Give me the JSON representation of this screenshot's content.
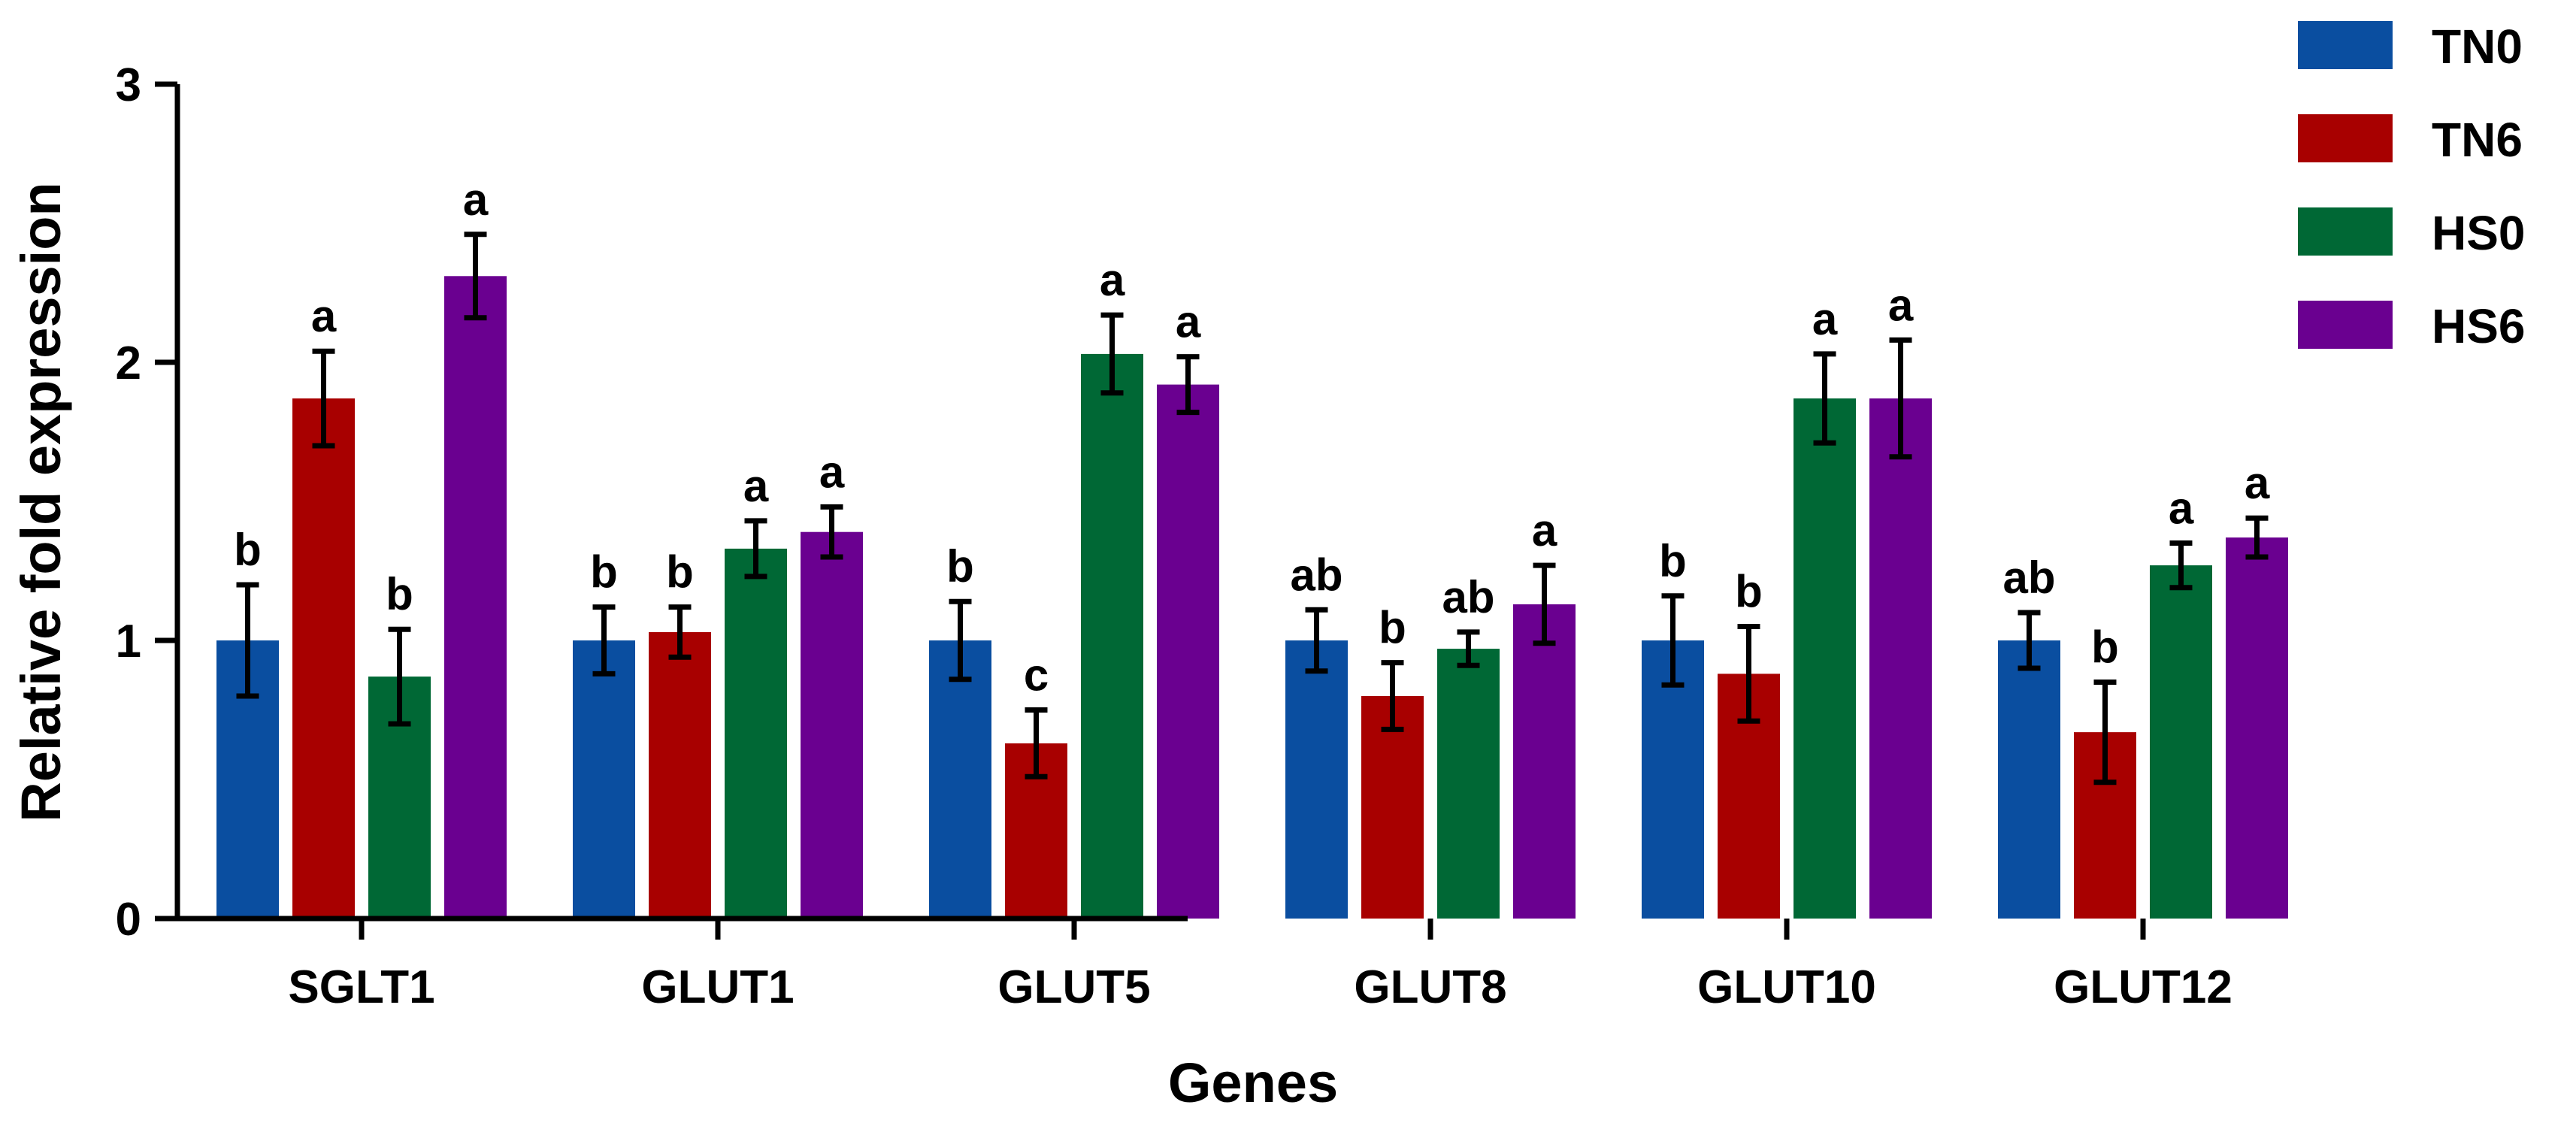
{
  "chart_data": {
    "type": "bar",
    "title": "",
    "xlabel": "Genes",
    "ylabel": "Relative fold expression",
    "ylim": [
      0,
      3
    ],
    "yticks": [
      0,
      1,
      2,
      3
    ],
    "categories": [
      "SGLT1",
      "GLUT1",
      "GLUT5",
      "GLUT8",
      "GLUT10",
      "GLUT12"
    ],
    "legend_position": "top-right",
    "series": [
      {
        "name": "TN0",
        "color": "#0a4ea0",
        "values": [
          1.0,
          1.0,
          1.0,
          1.0,
          1.0,
          1.0
        ],
        "errors": [
          0.2,
          0.12,
          0.14,
          0.11,
          0.16,
          0.1
        ],
        "labels": [
          "b",
          "b",
          "b",
          "ab",
          "b",
          "ab"
        ]
      },
      {
        "name": "TN6",
        "color": "#a80000",
        "values": [
          1.87,
          1.03,
          0.63,
          0.8,
          0.88,
          0.67
        ],
        "errors": [
          0.17,
          0.09,
          0.12,
          0.12,
          0.17,
          0.18
        ],
        "labels": [
          "a",
          "b",
          "c",
          "b",
          "b",
          "b"
        ]
      },
      {
        "name": "HS0",
        "color": "#006835",
        "values": [
          0.87,
          1.33,
          2.03,
          0.97,
          1.87,
          1.27
        ],
        "errors": [
          0.17,
          0.1,
          0.14,
          0.06,
          0.16,
          0.08
        ],
        "labels": [
          "b",
          "a",
          "a",
          "ab",
          "a",
          "a"
        ]
      },
      {
        "name": "HS6",
        "color": "#6a0090",
        "values": [
          2.31,
          1.39,
          1.92,
          1.13,
          1.87,
          1.37
        ],
        "errors": [
          0.15,
          0.09,
          0.1,
          0.14,
          0.21,
          0.07
        ],
        "labels": [
          "a",
          "a",
          "a",
          "a",
          "a",
          "a"
        ]
      }
    ]
  }
}
